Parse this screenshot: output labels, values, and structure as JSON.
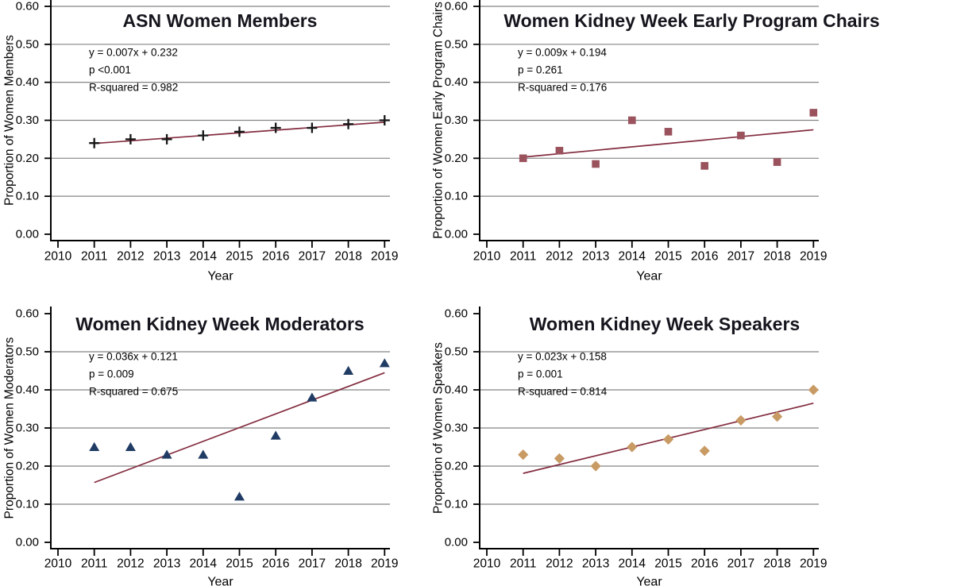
{
  "figure": {
    "background": "#ffffff",
    "grid_color": "#858585",
    "axis_color": "#000000",
    "text_color": "#000000",
    "title_color": "#15151d",
    "trend_color": "#832c3f"
  },
  "chart_data": [
    {
      "type": "scatter",
      "title": "ASN Women Members",
      "xlabel": "Year",
      "ylabel": "Proportion of Women Members",
      "x": [
        2011,
        2012,
        2013,
        2014,
        2015,
        2016,
        2017,
        2018,
        2019
      ],
      "values": [
        0.24,
        0.25,
        0.25,
        0.26,
        0.27,
        0.28,
        0.28,
        0.29,
        0.3
      ],
      "marker": "plus",
      "marker_color": "#161616",
      "trend": {
        "equation": "y = 0.007x + 0.232",
        "p": "p <0.001",
        "r2": "R-squared = 0.982",
        "slope": 0.007,
        "intercept": 0.232
      },
      "xlim": [
        2010,
        2019
      ],
      "ylim": [
        0.0,
        0.6
      ],
      "yticks": [
        "0.00",
        "0.10",
        "0.20",
        "0.30",
        "0.40",
        "0.50",
        "0.60"
      ],
      "xticks": [
        "2010",
        "2011",
        "2012",
        "2013",
        "2014",
        "2015",
        "2016",
        "2017",
        "2018",
        "2019"
      ],
      "grid": true
    },
    {
      "type": "scatter",
      "title": "Women Kidney Week Early Program Chairs",
      "xlabel": "Year",
      "ylabel": "Proportion of Women Early Program Chairs",
      "x": [
        2011,
        2012,
        2013,
        2014,
        2015,
        2016,
        2017,
        2018,
        2019
      ],
      "values": [
        0.2,
        0.22,
        0.185,
        0.3,
        0.27,
        0.18,
        0.26,
        0.19,
        0.32
      ],
      "marker": "square",
      "marker_color": "#9a525d",
      "trend": {
        "equation": "y = 0.009x + 0.194",
        "p": "p = 0.261",
        "r2": "R-squared = 0.176",
        "slope": 0.009,
        "intercept": 0.194
      },
      "xlim": [
        2010,
        2019
      ],
      "ylim": [
        0.0,
        0.6
      ],
      "yticks": [
        "0.00",
        "0.10",
        "0.20",
        "0.30",
        "0.40",
        "0.50",
        "0.60"
      ],
      "xticks": [
        "2010",
        "2011",
        "2012",
        "2013",
        "2014",
        "2015",
        "2016",
        "2017",
        "2018",
        "2019"
      ],
      "grid": true
    },
    {
      "type": "scatter",
      "title": "Women Kidney Week Moderators",
      "xlabel": "Year",
      "ylabel": "Proportion of Women Moderators",
      "x": [
        2011,
        2012,
        2013,
        2014,
        2015,
        2016,
        2017,
        2018,
        2019
      ],
      "values": [
        0.25,
        0.25,
        0.23,
        0.23,
        0.12,
        0.28,
        0.38,
        0.45,
        0.47
      ],
      "marker": "triangle",
      "marker_color": "#213c64",
      "trend": {
        "equation": "y = 0.036x + 0.121",
        "p": "p = 0.009",
        "r2": "R-squared = 0.675",
        "slope": 0.036,
        "intercept": 0.121
      },
      "xlim": [
        2010,
        2019
      ],
      "ylim": [
        0.0,
        0.6
      ],
      "yticks": [
        "0.00",
        "0.10",
        "0.20",
        "0.30",
        "0.40",
        "0.50",
        "0.60"
      ],
      "xticks": [
        "2010",
        "2011",
        "2012",
        "2013",
        "2014",
        "2015",
        "2016",
        "2017",
        "2018",
        "2019"
      ],
      "grid": true
    },
    {
      "type": "scatter",
      "title": "Women Kidney Week Speakers",
      "xlabel": "Year",
      "ylabel": "Proportion of Women Speakers",
      "x": [
        2011,
        2012,
        2013,
        2014,
        2015,
        2016,
        2017,
        2018,
        2019
      ],
      "values": [
        0.23,
        0.22,
        0.2,
        0.25,
        0.27,
        0.24,
        0.32,
        0.33,
        0.4
      ],
      "marker": "diamond",
      "marker_color": "#c89a64",
      "trend": {
        "equation": "y = 0.023x + 0.158",
        "p": "p = 0.001",
        "r2": "R-squared = 0.814",
        "slope": 0.023,
        "intercept": 0.158
      },
      "xlim": [
        2010,
        2019
      ],
      "ylim": [
        0.0,
        0.6
      ],
      "yticks": [
        "0.00",
        "0.10",
        "0.20",
        "0.30",
        "0.40",
        "0.50",
        "0.60"
      ],
      "xticks": [
        "2010",
        "2011",
        "2012",
        "2013",
        "2014",
        "2015",
        "2016",
        "2017",
        "2018",
        "2019"
      ],
      "grid": true
    }
  ]
}
